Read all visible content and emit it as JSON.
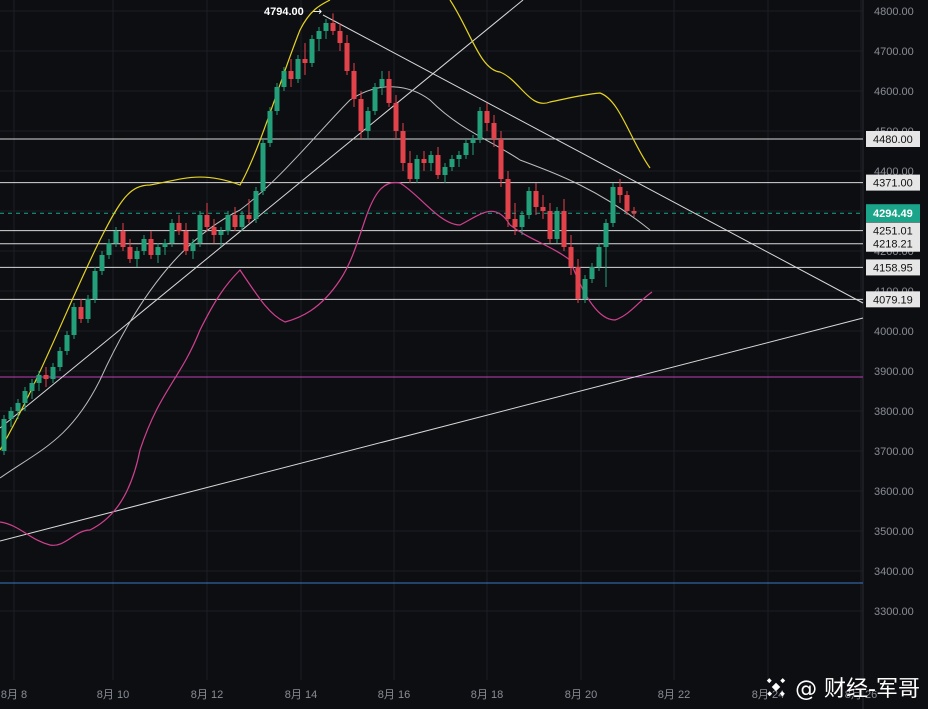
{
  "chart_data": {
    "type": "candlestick",
    "title": "",
    "ylim": [
      3250,
      4820
    ],
    "y_ticks": [
      3300,
      3400,
      3500,
      3600,
      3700,
      3800,
      3900,
      4000,
      4100,
      4200,
      4300,
      4400,
      4500,
      4600,
      4700,
      4800
    ],
    "x_tick_labels": [
      "8月 8",
      "8月 10",
      "8月 12",
      "8月 14",
      "8月 16",
      "8月 18",
      "8月 20",
      "8月 22",
      "8月 24",
      "8月 26"
    ],
    "high_marker": "4794.00",
    "current_price": "4294.49",
    "levels": [
      {
        "value": 4480,
        "label": "4480.00"
      },
      {
        "value": 4371,
        "label": "4371.00"
      },
      {
        "value": 4251.01,
        "label": "4251.01"
      },
      {
        "value": 4218.21,
        "label": "4218.21"
      },
      {
        "value": 4158.95,
        "label": "4158.95"
      },
      {
        "value": 4079.19,
        "label": "4079.19"
      }
    ],
    "magenta_line": 3885,
    "blue_line": 3370,
    "candles": [
      [
        3700,
        3790,
        3690,
        3780
      ],
      [
        3780,
        3810,
        3760,
        3800
      ],
      [
        3800,
        3830,
        3780,
        3820
      ],
      [
        3820,
        3860,
        3800,
        3850
      ],
      [
        3850,
        3880,
        3830,
        3870
      ],
      [
        3870,
        3900,
        3850,
        3890
      ],
      [
        3890,
        3910,
        3860,
        3880
      ],
      [
        3880,
        3920,
        3870,
        3910
      ],
      [
        3910,
        3960,
        3900,
        3950
      ],
      [
        3950,
        4000,
        3940,
        3990
      ],
      [
        3990,
        4070,
        3980,
        4060
      ],
      [
        4060,
        4080,
        4020,
        4030
      ],
      [
        4030,
        4090,
        4020,
        4080
      ],
      [
        4080,
        4160,
        4070,
        4150
      ],
      [
        4150,
        4200,
        4140,
        4190
      ],
      [
        4190,
        4230,
        4180,
        4220
      ],
      [
        4220,
        4260,
        4210,
        4250
      ],
      [
        4250,
        4270,
        4200,
        4210
      ],
      [
        4210,
        4230,
        4170,
        4180
      ],
      [
        4180,
        4210,
        4160,
        4200
      ],
      [
        4200,
        4240,
        4190,
        4230
      ],
      [
        4230,
        4250,
        4180,
        4190
      ],
      [
        4190,
        4220,
        4170,
        4210
      ],
      [
        4210,
        4230,
        4190,
        4220
      ],
      [
        4220,
        4280,
        4210,
        4270
      ],
      [
        4270,
        4290,
        4240,
        4250
      ],
      [
        4250,
        4270,
        4190,
        4200
      ],
      [
        4200,
        4230,
        4180,
        4220
      ],
      [
        4220,
        4300,
        4210,
        4290
      ],
      [
        4290,
        4320,
        4250,
        4260
      ],
      [
        4260,
        4280,
        4220,
        4240
      ],
      [
        4240,
        4260,
        4210,
        4250
      ],
      [
        4250,
        4300,
        4240,
        4290
      ],
      [
        4290,
        4310,
        4250,
        4260
      ],
      [
        4260,
        4300,
        4250,
        4290
      ],
      [
        4290,
        4330,
        4270,
        4280
      ],
      [
        4280,
        4360,
        4270,
        4350
      ],
      [
        4350,
        4480,
        4340,
        4470
      ],
      [
        4470,
        4560,
        4460,
        4550
      ],
      [
        4550,
        4620,
        4540,
        4610
      ],
      [
        4610,
        4660,
        4600,
        4650
      ],
      [
        4650,
        4680,
        4610,
        4630
      ],
      [
        4630,
        4690,
        4620,
        4680
      ],
      [
        4680,
        4720,
        4640,
        4670
      ],
      [
        4670,
        4740,
        4660,
        4730
      ],
      [
        4730,
        4760,
        4700,
        4750
      ],
      [
        4750,
        4780,
        4730,
        4770
      ],
      [
        4770,
        4794,
        4740,
        4750
      ],
      [
        4750,
        4770,
        4700,
        4720
      ],
      [
        4720,
        4740,
        4640,
        4650
      ],
      [
        4650,
        4670,
        4560,
        4580
      ],
      [
        4580,
        4600,
        4480,
        4500
      ],
      [
        4500,
        4560,
        4480,
        4550
      ],
      [
        4550,
        4620,
        4540,
        4610
      ],
      [
        4610,
        4650,
        4590,
        4630
      ],
      [
        4630,
        4650,
        4560,
        4570
      ],
      [
        4570,
        4590,
        4480,
        4500
      ],
      [
        4500,
        4520,
        4400,
        4420
      ],
      [
        4420,
        4450,
        4370,
        4380
      ],
      [
        4380,
        4440,
        4370,
        4430
      ],
      [
        4430,
        4450,
        4400,
        4420
      ],
      [
        4420,
        4450,
        4400,
        4440
      ],
      [
        4440,
        4460,
        4380,
        4390
      ],
      [
        4390,
        4420,
        4370,
        4410
      ],
      [
        4410,
        4440,
        4400,
        4430
      ],
      [
        4430,
        4450,
        4410,
        4440
      ],
      [
        4440,
        4480,
        4430,
        4470
      ],
      [
        4470,
        4490,
        4440,
        4480
      ],
      [
        4480,
        4560,
        4470,
        4550
      ],
      [
        4550,
        4570,
        4500,
        4520
      ],
      [
        4520,
        4540,
        4460,
        4480
      ],
      [
        4480,
        4500,
        4360,
        4380
      ],
      [
        4380,
        4400,
        4260,
        4280
      ],
      [
        4280,
        4320,
        4240,
        4260
      ],
      [
        4260,
        4300,
        4240,
        4290
      ],
      [
        4290,
        4360,
        4280,
        4350
      ],
      [
        4350,
        4370,
        4290,
        4310
      ],
      [
        4310,
        4340,
        4280,
        4300
      ],
      [
        4300,
        4320,
        4220,
        4230
      ],
      [
        4230,
        4310,
        4220,
        4300
      ],
      [
        4300,
        4330,
        4200,
        4210
      ],
      [
        4210,
        4240,
        4140,
        4160
      ],
      [
        4160,
        4180,
        4070,
        4080
      ],
      [
        4080,
        4140,
        4070,
        4130
      ],
      [
        4130,
        4170,
        4120,
        4160
      ],
      [
        4160,
        4220,
        4150,
        4210
      ],
      [
        4210,
        4280,
        4110,
        4270
      ],
      [
        4270,
        4370,
        4260,
        4360
      ],
      [
        4360,
        4380,
        4320,
        4340
      ],
      [
        4340,
        4350,
        4290,
        4300
      ],
      [
        4300,
        4310,
        4285,
        4294.49
      ]
    ]
  },
  "watermark": {
    "handle": "@ 财经-军哥"
  }
}
